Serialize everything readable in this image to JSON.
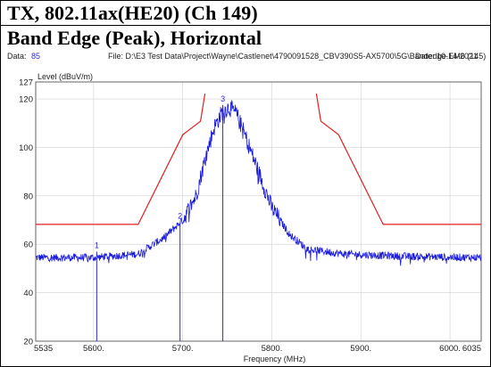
{
  "header": {
    "line1": "TX, 802.11ax(HE20) (Ch 149)",
    "line2": "Band Edge (Peak), Horizontal"
  },
  "meta": {
    "data_label": "Data:",
    "data_value": "85",
    "file_text": "File: D:\\E3 Test Data\\Project\\Wayne\\Castlenet\\4790091528_CBV390S5-AX5700\\5G\\Bandedge.EM6  (145)",
    "date_text": "Date: 10-14-2021"
  },
  "colors": {
    "trace": "#1a1adb",
    "limit": "#e02020",
    "marker": "#2a2ad8",
    "grid": "#d0d0d0"
  },
  "chart_data": {
    "type": "line",
    "xlabel": "Frequency (MHz)",
    "ylabel": "Level (dBuV/m)",
    "xlim": [
      5535,
      6035
    ],
    "ylim": [
      20,
      127
    ],
    "x_ticks": [
      "5535",
      "5600.",
      "5700.",
      "5800.",
      "5900.",
      "6000.",
      "6035"
    ],
    "x_tick_values": [
      5535,
      5600,
      5700,
      5800,
      5900,
      6000,
      6035
    ],
    "y_ticks": [
      "20",
      "40",
      "60",
      "80",
      "100",
      "120",
      "127"
    ],
    "y_tick_values": [
      20,
      40,
      60,
      80,
      100,
      120,
      127
    ],
    "grid": true,
    "limit_line": {
      "x": [
        5535,
        5650,
        5700,
        5720,
        5725,
        5725,
        5850,
        5850,
        5855,
        5875,
        5925,
        6035
      ],
      "y": [
        68.2,
        68.2,
        105.2,
        110.8,
        122.2,
        null,
        null,
        122.2,
        110.8,
        105.2,
        68.2,
        68.2
      ]
    },
    "trace_envelope": {
      "x": [
        5535,
        5600,
        5650,
        5680,
        5700,
        5715,
        5725,
        5735,
        5745,
        5752,
        5760,
        5770,
        5785,
        5800,
        5820,
        5840,
        5880,
        5950,
        6035
      ],
      "y": [
        54.5,
        54.5,
        56,
        63,
        70,
        80,
        95,
        108,
        115,
        116.5,
        114,
        105,
        90,
        75,
        64,
        58,
        56,
        55,
        54.5
      ]
    },
    "noise_amplitude": 1.6,
    "markers": [
      {
        "label": "1",
        "x": 5603.5,
        "y": 57.0
      },
      {
        "label": "2",
        "x": 5697.0,
        "y": 69.0
      },
      {
        "label": "3",
        "x": 5745.0,
        "y": 117.5
      }
    ]
  }
}
